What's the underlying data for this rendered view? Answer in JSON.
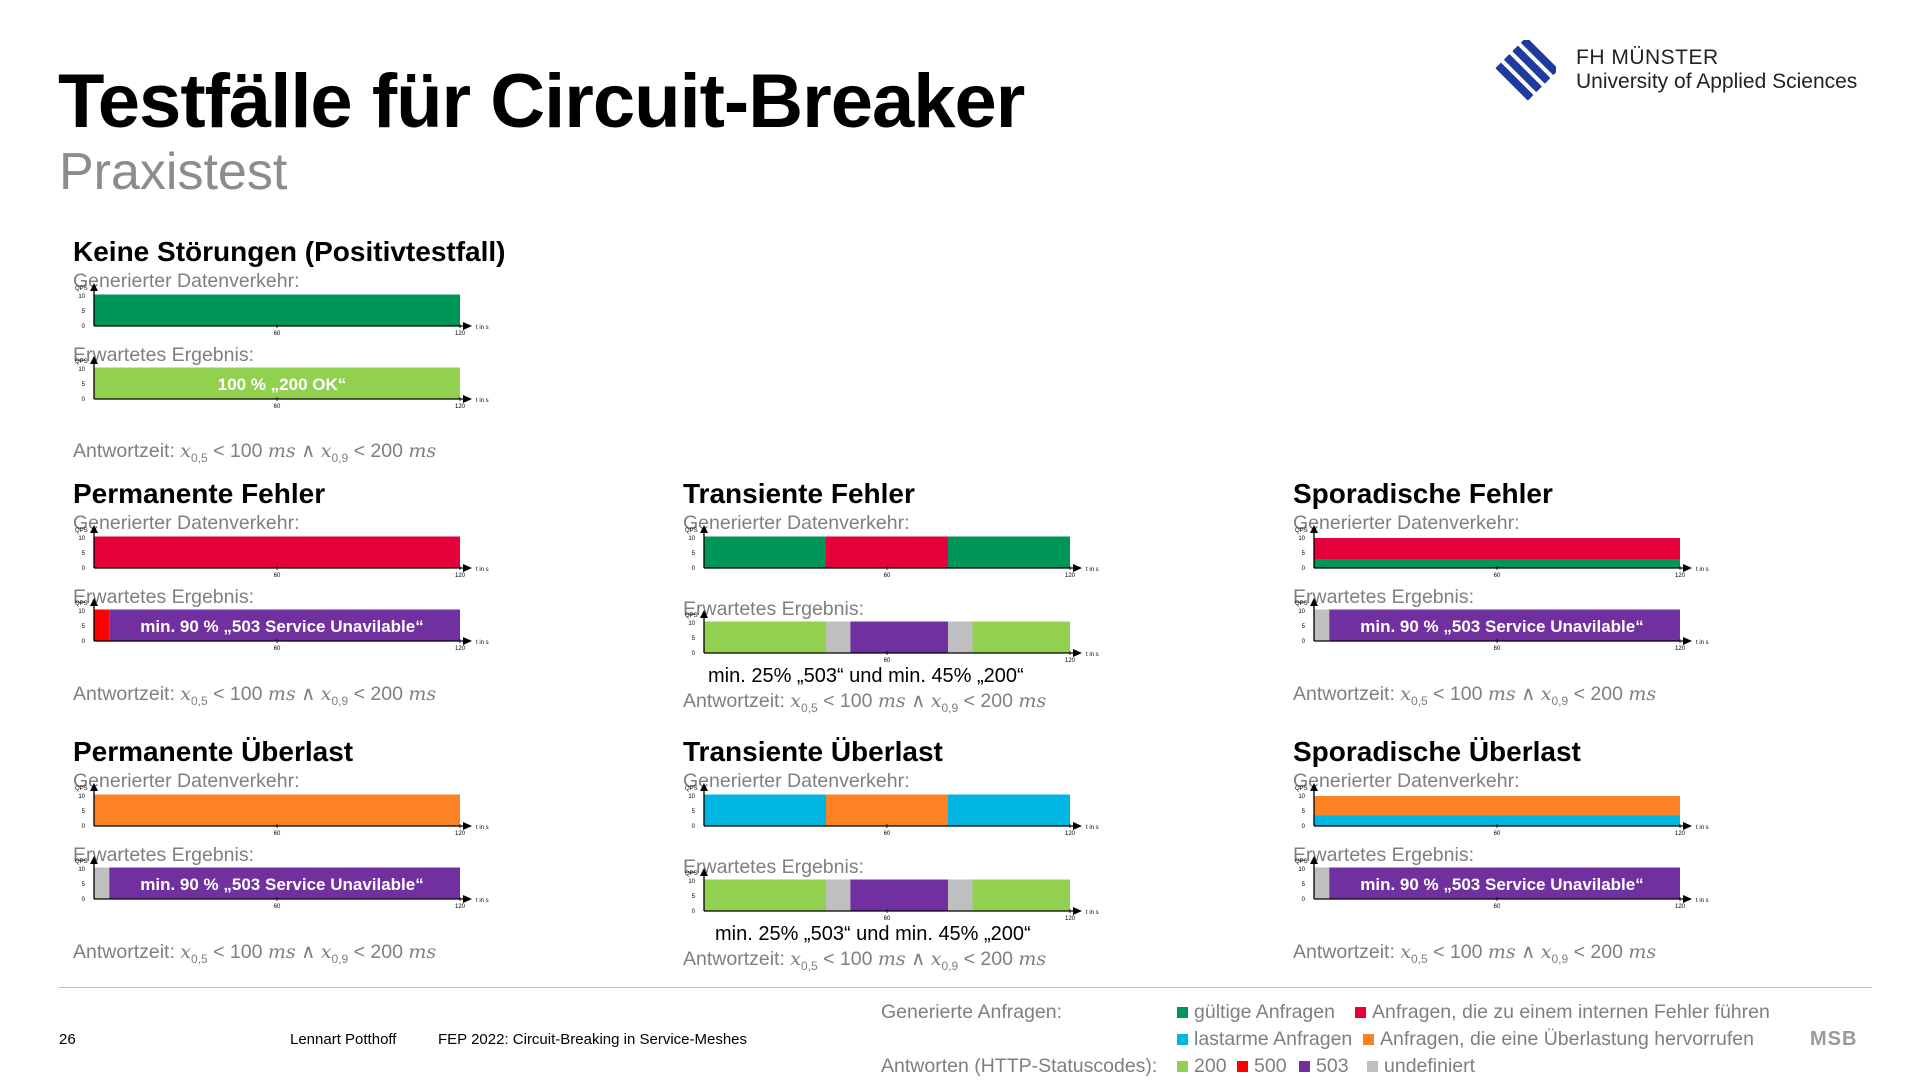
{
  "header": {
    "title": "Testfälle für Circuit-Breaker",
    "subtitle": "Praxistest",
    "logo_line1": "FH MÜNSTER",
    "logo_line2": "University of Applied Sciences"
  },
  "colors": {
    "valid_request": "#00965a",
    "internal_error_request": "#e4003a",
    "low_load_request": "#00b5e2",
    "overload_request": "#fc8224",
    "status_200": "#92d050",
    "status_500": "#ff0000",
    "status_503": "#7030a0",
    "undefined": "#bfbfbf"
  },
  "axis": {
    "y_label": "QPS",
    "x_label": "t in s",
    "y_ticks": [
      "0",
      "5",
      "10"
    ],
    "x_ticks": [
      "60",
      "120"
    ]
  },
  "sections": [
    {
      "title": "Keine Störungen (Positivtestfall)",
      "generated_label": "Generierter Datenverkehr:",
      "expected_label": "Erwartetes Ergebnis:",
      "response_label": "Antwortzeit:",
      "generated": {
        "segments": [
          {
            "start": 0,
            "end": 120,
            "color": "valid_request"
          }
        ]
      },
      "expected": {
        "segments": [
          {
            "start": 0,
            "end": 120,
            "color": "status_200"
          }
        ],
        "label": "100 % „200 OK“"
      },
      "note": ""
    },
    {
      "title": "Permanente Fehler",
      "generated_label": "Generierter Datenverkehr:",
      "expected_label": "Erwartetes Ergebnis:",
      "response_label": "Antwortzeit:",
      "generated": {
        "segments": [
          {
            "start": 0,
            "end": 120,
            "color": "internal_error_request"
          }
        ]
      },
      "expected": {
        "segments": [
          {
            "start": 0,
            "end": 5,
            "color": "status_500"
          },
          {
            "start": 5,
            "end": 120,
            "color": "status_503"
          }
        ],
        "label": "min. 90 % „503 Service Unavilable“"
      },
      "note": ""
    },
    {
      "title": "Transiente Fehler",
      "generated_label": "Generierter Datenverkehr:",
      "expected_label": "Erwartetes Ergebnis:",
      "response_label": "Antwortzeit:",
      "generated": {
        "segments": [
          {
            "start": 0,
            "end": 40,
            "color": "valid_request"
          },
          {
            "start": 40,
            "end": 80,
            "color": "internal_error_request"
          },
          {
            "start": 80,
            "end": 120,
            "color": "valid_request"
          }
        ]
      },
      "expected": {
        "segments": [
          {
            "start": 0,
            "end": 40,
            "color": "status_200"
          },
          {
            "start": 40,
            "end": 48,
            "color": "undefined"
          },
          {
            "start": 48,
            "end": 80,
            "color": "status_503"
          },
          {
            "start": 80,
            "end": 88,
            "color": "undefined"
          },
          {
            "start": 88,
            "end": 120,
            "color": "status_200"
          }
        ],
        "label": ""
      },
      "note": "min. 25% „503“ und min. 45% „200“"
    },
    {
      "title": "Sporadische Fehler",
      "generated_label": "Generierter Datenverkehr:",
      "expected_label": "Erwartetes Ergebnis:",
      "response_label": "Antwortzeit:",
      "generated": {
        "stacked": [
          {
            "from": 0,
            "to": 3,
            "color": "valid_request"
          },
          {
            "from": 3,
            "to": 10,
            "color": "internal_error_request"
          }
        ]
      },
      "expected": {
        "segments": [
          {
            "start": 0,
            "end": 5,
            "color": "undefined"
          },
          {
            "start": 5,
            "end": 120,
            "color": "status_503"
          }
        ],
        "label": "min. 90 % „503 Service Unavilable“"
      },
      "note": ""
    },
    {
      "title": "Permanente Überlast",
      "generated_label": "Generierter Datenverkehr:",
      "expected_label": "Erwartetes Ergebnis:",
      "response_label": "Antwortzeit:",
      "generated": {
        "segments": [
          {
            "start": 0,
            "end": 120,
            "color": "overload_request"
          }
        ]
      },
      "expected": {
        "segments": [
          {
            "start": 0,
            "end": 5,
            "color": "undefined"
          },
          {
            "start": 5,
            "end": 120,
            "color": "status_503"
          }
        ],
        "label": "min. 90 % „503 Service Unavilable“"
      },
      "note": ""
    },
    {
      "title": "Transiente Überlast",
      "generated_label": "Generierter Datenverkehr:",
      "expected_label": "Erwartetes Ergebnis:",
      "response_label": "Antwortzeit:",
      "generated": {
        "segments": [
          {
            "start": 0,
            "end": 40,
            "color": "low_load_request"
          },
          {
            "start": 40,
            "end": 80,
            "color": "overload_request"
          },
          {
            "start": 80,
            "end": 120,
            "color": "low_load_request"
          }
        ]
      },
      "expected": {
        "segments": [
          {
            "start": 0,
            "end": 40,
            "color": "status_200"
          },
          {
            "start": 40,
            "end": 48,
            "color": "undefined"
          },
          {
            "start": 48,
            "end": 80,
            "color": "status_503"
          },
          {
            "start": 80,
            "end": 88,
            "color": "undefined"
          },
          {
            "start": 88,
            "end": 120,
            "color": "status_200"
          }
        ],
        "label": ""
      },
      "note": "min. 25% „503“ und min. 45% „200“"
    },
    {
      "title": "Sporadische Überlast",
      "generated_label": "Generierter Datenverkehr:",
      "expected_label": "Erwartetes Ergebnis:",
      "response_label": "Antwortzeit:",
      "generated": {
        "stacked": [
          {
            "from": 0,
            "to": 3.5,
            "color": "low_load_request"
          },
          {
            "from": 3.5,
            "to": 10,
            "color": "overload_request"
          }
        ]
      },
      "expected": {
        "segments": [
          {
            "start": 0,
            "end": 5,
            "color": "undefined"
          },
          {
            "start": 5,
            "end": 120,
            "color": "status_503"
          }
        ],
        "label": "min. 90 % „503 Service Unavilable“"
      },
      "note": ""
    }
  ],
  "legend": {
    "requests_head": "Generierte Anfragen:",
    "responses_head": "Antworten (HTTP-Statuscodes):",
    "requests": [
      {
        "color": "valid_request",
        "label": "gültige Anfragen"
      },
      {
        "color": "internal_error_request",
        "label": "Anfragen, die zu einem internen Fehler führen"
      },
      {
        "color": "low_load_request",
        "label": "lastarme Anfragen"
      },
      {
        "color": "overload_request",
        "label": "Anfragen, die eine Überlastung hervorrufen"
      }
    ],
    "responses": [
      {
        "color": "status_200",
        "label": "200"
      },
      {
        "color": "status_500",
        "label": "500"
      },
      {
        "color": "status_503",
        "label": "503"
      },
      {
        "color": "undefined",
        "label": "undefiniert"
      }
    ]
  },
  "footer": {
    "page": "26",
    "author": "Lennart Potthoff",
    "conference": "FEP 2022: Circuit-Breaking in Service-Meshes",
    "badge": "MSB"
  }
}
